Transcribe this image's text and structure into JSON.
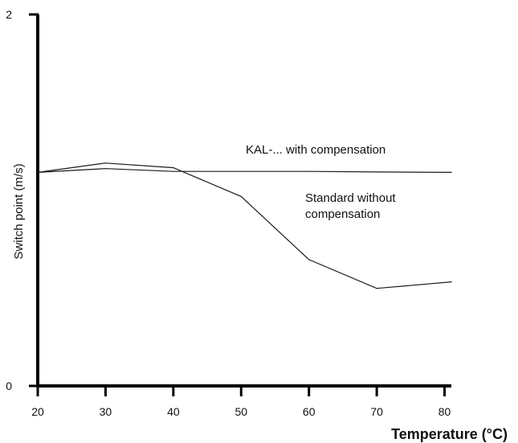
{
  "chart_data": {
    "type": "line",
    "xlabel": "Temperature (°C)",
    "ylabel": "Switch point (m/s)",
    "xlim": [
      20,
      81
    ],
    "ylim": [
      0,
      2
    ],
    "x_ticks": [
      "20",
      "30",
      "40",
      "50",
      "60",
      "70",
      "80"
    ],
    "y_ticks": [
      "0",
      "2"
    ],
    "grid": false,
    "series": [
      {
        "name": "KAL-... with compensation",
        "x": [
          20,
          30,
          40,
          50,
          60,
          70,
          81
        ],
        "y": [
          1.15,
          1.17,
          1.155,
          1.155,
          1.155,
          1.152,
          1.15
        ]
      },
      {
        "name": "Standard without compensation",
        "x": [
          20,
          30,
          40,
          50,
          60,
          70,
          81
        ],
        "y": [
          1.15,
          1.2,
          1.175,
          1.02,
          0.68,
          0.525,
          0.56
        ]
      }
    ]
  },
  "colors": {
    "line": "#1a1a1a",
    "axis": "#000000"
  }
}
